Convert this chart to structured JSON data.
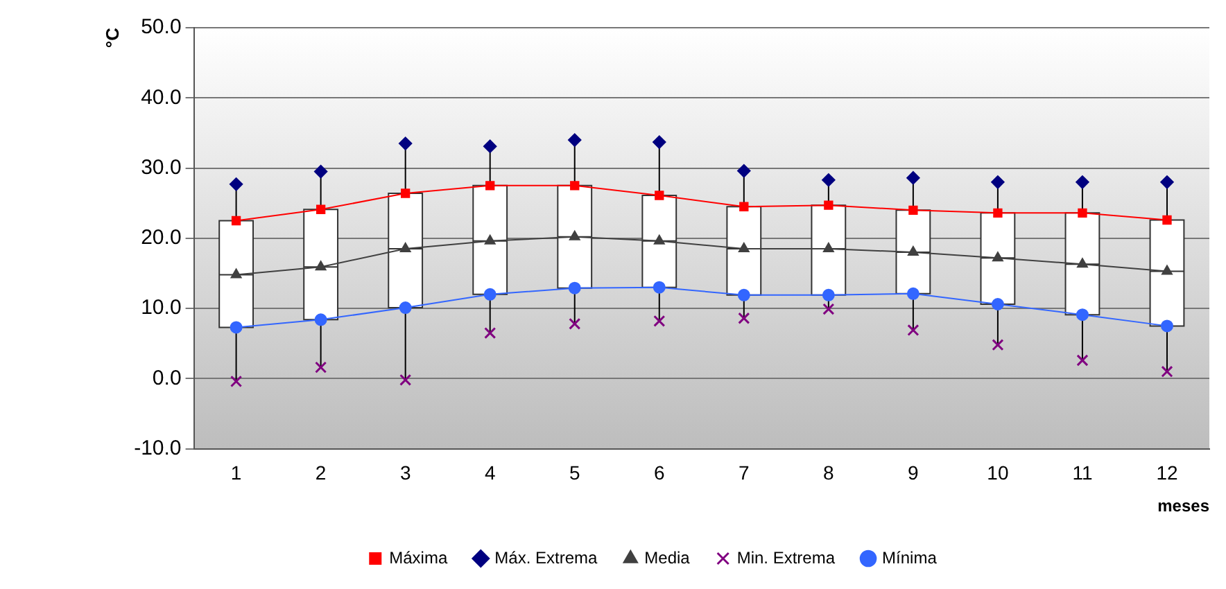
{
  "chart_data": {
    "type": "line",
    "xlabel": "meses",
    "ylabel": "°C",
    "x": [
      1,
      2,
      3,
      4,
      5,
      6,
      7,
      8,
      9,
      10,
      11,
      12
    ],
    "xlim": [
      0.5,
      12.5
    ],
    "xticks": [
      1,
      2,
      3,
      4,
      5,
      6,
      7,
      8,
      9,
      10,
      11,
      12
    ],
    "series": [
      {
        "name": "Máxima",
        "color": "#ff0000",
        "marker": "square",
        "values": [
          22.5,
          24.1,
          26.4,
          27.5,
          27.5,
          26.1,
          24.5,
          24.7,
          24.0,
          23.6,
          23.6,
          22.6
        ]
      },
      {
        "name": "Máx. Extrema",
        "type": "scatter",
        "color": "#000080",
        "marker": "diamond",
        "values": [
          27.7,
          29.5,
          33.5,
          33.1,
          34.0,
          33.7,
          29.6,
          28.3,
          28.6,
          28.0,
          28.0,
          28.0
        ]
      },
      {
        "name": "Media",
        "color": "#404040",
        "marker": "triangle",
        "values": [
          14.8,
          15.9,
          18.5,
          19.6,
          20.2,
          19.6,
          18.5,
          18.5,
          18.0,
          17.2,
          16.3,
          15.3
        ]
      },
      {
        "name": "Min. Extrema",
        "type": "scatter",
        "color": "#800080",
        "marker": "cross",
        "values": [
          -0.4,
          1.6,
          -0.2,
          6.5,
          7.8,
          8.2,
          8.6,
          9.9,
          6.9,
          4.8,
          2.6,
          1.0
        ]
      },
      {
        "name": "Mínima",
        "color": "#3366ff",
        "marker": "circle",
        "values": [
          7.3,
          8.4,
          10.1,
          12.0,
          12.9,
          13.0,
          11.9,
          11.9,
          12.1,
          10.6,
          9.1,
          7.5
        ]
      },
      {
        "type": "box",
        "color": "#ffffff",
        "boxes": [
          {
            "low": -0.4,
            "q1": 7.3,
            "median": 14.8,
            "q3": 22.5,
            "high": 27.7
          },
          {
            "low": 1.6,
            "q1": 8.4,
            "median": 15.9,
            "q3": 24.1,
            "high": 29.5
          },
          {
            "low": -0.2,
            "q1": 10.1,
            "median": 18.5,
            "q3": 26.4,
            "high": 33.5
          },
          {
            "low": 6.5,
            "q1": 12.0,
            "median": 19.6,
            "q3": 27.5,
            "high": 33.1
          },
          {
            "low": 7.8,
            "q1": 12.9,
            "median": 20.2,
            "q3": 27.5,
            "high": 34.0
          },
          {
            "low": 8.2,
            "q1": 13.0,
            "median": 19.6,
            "q3": 26.1,
            "high": 33.7
          },
          {
            "low": 8.6,
            "q1": 11.9,
            "median": 18.5,
            "q3": 24.5,
            "high": 29.6
          },
          {
            "low": 9.9,
            "q1": 11.9,
            "median": 18.5,
            "q3": 24.7,
            "high": 28.3
          },
          {
            "low": 6.9,
            "q1": 12.1,
            "median": 18.0,
            "q3": 24.0,
            "high": 28.6
          },
          {
            "low": 4.8,
            "q1": 10.6,
            "median": 17.2,
            "q3": 23.6,
            "high": 28.0
          },
          {
            "low": 2.6,
            "q1": 9.1,
            "median": 16.3,
            "q3": 23.6,
            "high": 28.0
          },
          {
            "low": 1.0,
            "q1": 7.5,
            "median": 15.3,
            "q3": 22.6,
            "high": 28.0
          }
        ]
      }
    ],
    "ylim": [
      -10,
      50
    ],
    "yticks": [
      {
        "value": -10,
        "label": "-10.0"
      },
      {
        "value": 0,
        "label": "0.0"
      },
      {
        "value": 10,
        "label": "10.0"
      },
      {
        "value": 20,
        "label": "20.0"
      },
      {
        "value": 30,
        "label": "30.0"
      },
      {
        "value": 40,
        "label": "40.0"
      },
      {
        "value": 50,
        "label": "50.0"
      }
    ],
    "grid": "y",
    "legend": "bottom"
  }
}
